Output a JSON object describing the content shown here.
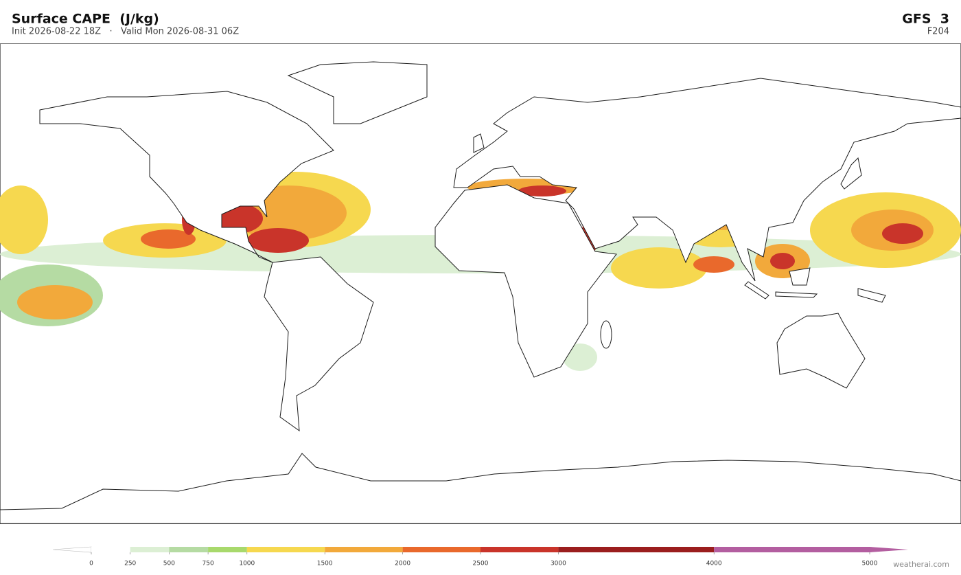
{
  "header": {
    "title": "Surface CAPE  (J/kg)",
    "subtitle": "Init 2026-08-22 18Z   ·   Valid Mon 2026-08-31 06Z",
    "model": "GFS  3",
    "forecast_hour": "F204"
  },
  "colorbar": {
    "ticks": [
      0,
      250,
      500,
      750,
      1000,
      1500,
      2000,
      2500,
      3000,
      4000,
      5000
    ],
    "colors": [
      "#ffffff",
      "#dcefd4",
      "#b5dba3",
      "#a8d96c",
      "#f6d84f",
      "#f2a93b",
      "#e9692c",
      "#c9342a",
      "#9b1e1e",
      "#b35ea0",
      "#b35ea0"
    ]
  },
  "footer": {
    "credit": "weatherai.com"
  }
}
